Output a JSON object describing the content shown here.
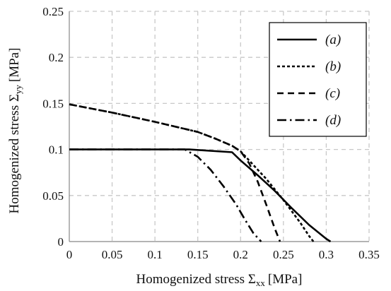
{
  "chart_data": {
    "type": "line",
    "xlabel": "Homogenized stress Σ",
    "xlabel_sub": "xx",
    "xlabel_unit": "[MPa]",
    "ylabel": "Homogenized stress Σ",
    "ylabel_sub": "yy",
    "ylabel_unit": "[MPa]",
    "xlim": [
      0,
      0.35
    ],
    "ylim": [
      0,
      0.25
    ],
    "xticks": [
      "0",
      "0.05",
      "0.1",
      "0.15",
      "0.2",
      "0.25",
      "0.3",
      "0.35"
    ],
    "yticks": [
      "0",
      "0.05",
      "0.1",
      "0.15",
      "0.2",
      "0.25"
    ],
    "grid": true,
    "legend_position": "top-right",
    "series": [
      {
        "name": "(a)",
        "style": "solid",
        "x": [
          0,
          0.14,
          0.19,
          0.2,
          0.22,
          0.24,
          0.26,
          0.28,
          0.3,
          0.305
        ],
        "y": [
          0.1,
          0.1,
          0.097,
          0.088,
          0.072,
          0.055,
          0.036,
          0.018,
          0.003,
          0
        ]
      },
      {
        "name": "(b)",
        "style": "short-dash",
        "x": [
          0,
          0.05,
          0.1,
          0.15,
          0.17,
          0.19,
          0.2,
          0.21,
          0.23,
          0.25,
          0.27,
          0.28,
          0.285
        ],
        "y": [
          0.149,
          0.14,
          0.13,
          0.119,
          0.112,
          0.104,
          0.098,
          0.088,
          0.068,
          0.045,
          0.02,
          0.006,
          0
        ]
      },
      {
        "name": "(c)",
        "style": "dash",
        "x": [
          0,
          0.05,
          0.1,
          0.15,
          0.17,
          0.19,
          0.2,
          0.21,
          0.22,
          0.23,
          0.24,
          0.246
        ],
        "y": [
          0.149,
          0.14,
          0.13,
          0.119,
          0.112,
          0.104,
          0.098,
          0.085,
          0.065,
          0.04,
          0.014,
          0
        ]
      },
      {
        "name": "(d)",
        "style": "dash-dot",
        "x": [
          0,
          0.135,
          0.15,
          0.165,
          0.18,
          0.195,
          0.205,
          0.215,
          0.224
        ],
        "y": [
          0.1,
          0.1,
          0.092,
          0.078,
          0.06,
          0.04,
          0.024,
          0.009,
          0
        ]
      }
    ]
  }
}
